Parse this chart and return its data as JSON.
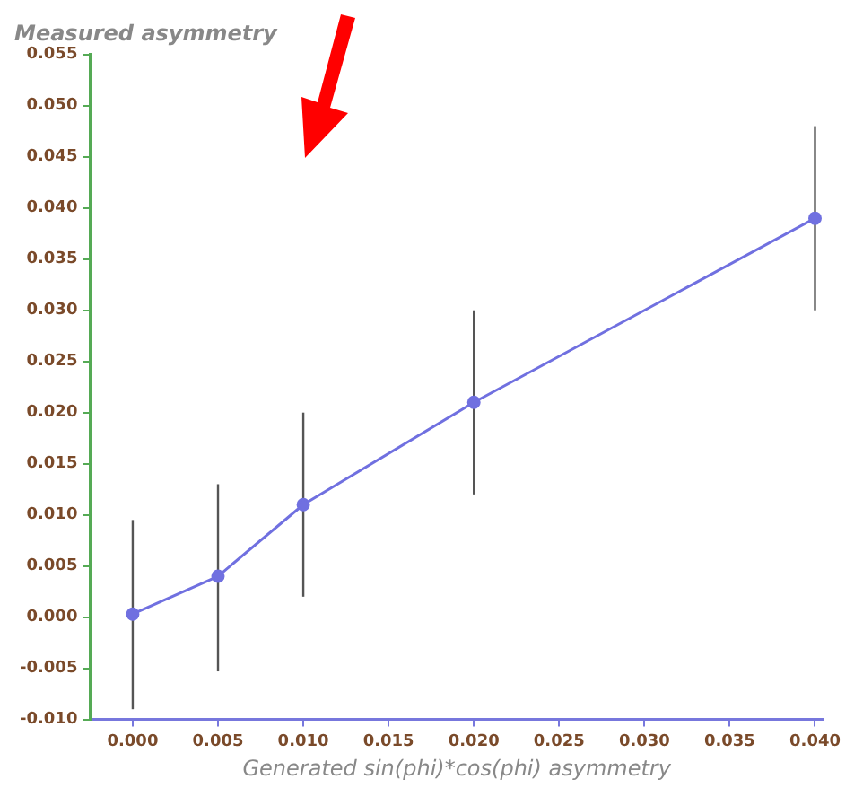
{
  "chart_data": {
    "type": "line",
    "ylabel": "Measured asymmetry",
    "xlabel": "Generated sin(phi)*cos(phi) asymmetry",
    "x": [
      0,
      0.005,
      0.01,
      0.02,
      0.04
    ],
    "series": [
      {
        "color": "#7070e0",
        "values": [
          0.0003,
          0.004,
          0.011,
          0.021,
          0.039
        ],
        "errors": [
          [
            -0.009,
            0.0095
          ],
          [
            -0.0053,
            0.013
          ],
          [
            0.002,
            0.02
          ],
          [
            0.012,
            0.03
          ],
          [
            0.03,
            0.048
          ]
        ]
      }
    ],
    "marker": "circle",
    "line_style": "solid",
    "xlim": [
      -0.0025,
      0.0405
    ],
    "xticks": [
      {
        "value": 0,
        "label": "0.000"
      },
      {
        "value": 0.005,
        "label": "0.005"
      },
      {
        "value": 0.01,
        "label": "0.010"
      },
      {
        "value": 0.015,
        "label": "0.015"
      },
      {
        "value": 0.02,
        "label": "0.020"
      },
      {
        "value": 0.025,
        "label": "0.025"
      },
      {
        "value": 0.03,
        "label": "0.030"
      },
      {
        "value": 0.035,
        "label": "0.035"
      },
      {
        "value": 0.04,
        "label": "0.040"
      }
    ],
    "ylim": [
      -0.01,
      0.055
    ],
    "yticks": [
      {
        "value": -0.01,
        "label": "-0.010"
      },
      {
        "value": -0.005,
        "label": "-0.005"
      },
      {
        "value": 0,
        "label": "0.000"
      },
      {
        "value": 0.005,
        "label": "0.005"
      },
      {
        "value": 0.01,
        "label": "0.010"
      },
      {
        "value": 0.015,
        "label": "0.015"
      },
      {
        "value": 0.02,
        "label": "0.020"
      },
      {
        "value": 0.025,
        "label": "0.025"
      },
      {
        "value": 0.03,
        "label": "0.030"
      },
      {
        "value": 0.035,
        "label": "0.035"
      },
      {
        "value": 0.04,
        "label": "0.040"
      },
      {
        "value": 0.045,
        "label": "0.045"
      },
      {
        "value": 0.05,
        "label": "0.050"
      },
      {
        "value": 0.055,
        "label": "0.055"
      }
    ]
  }
}
